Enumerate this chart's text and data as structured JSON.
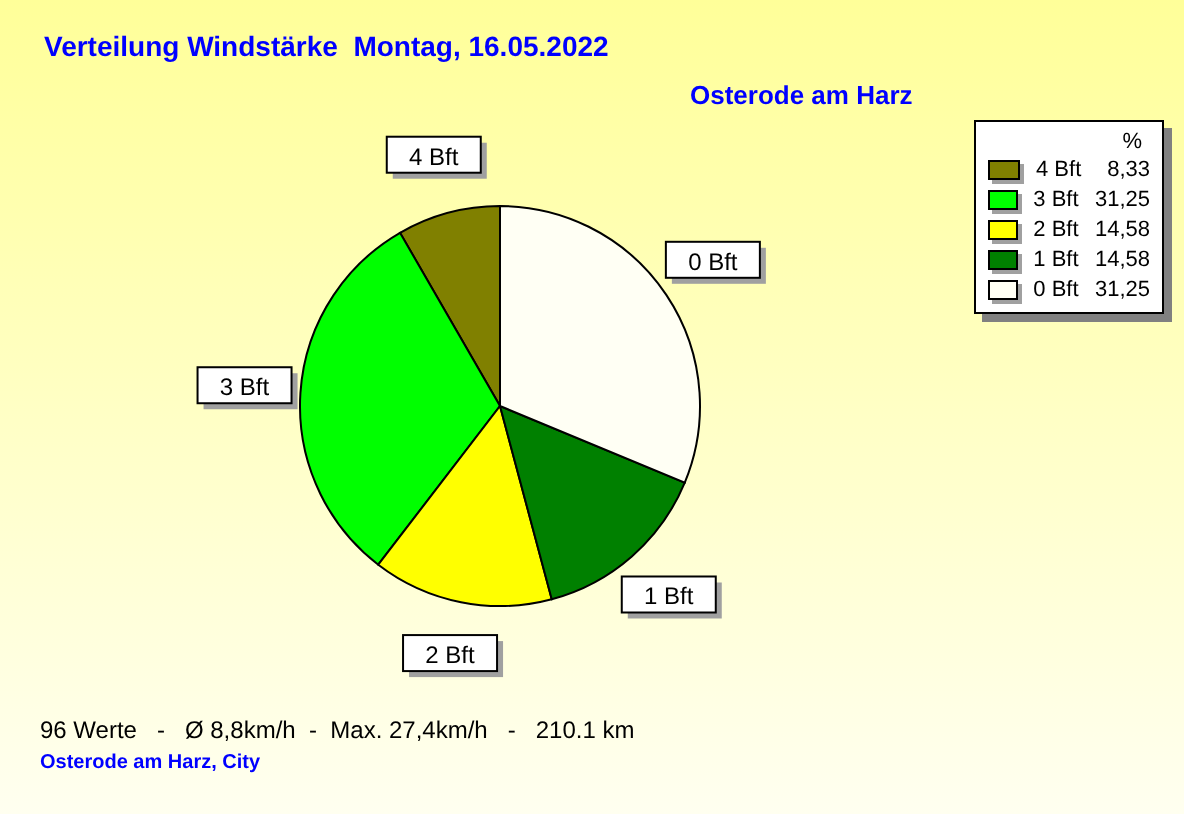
{
  "chart_data": {
    "type": "pie",
    "title": "Verteilung Windstärke  Montag, 16.05.2022",
    "subtitle": "Osterode am Harz",
    "legend_title": "%",
    "legend": "top right",
    "categories": [
      "4 Bft",
      "3 Bft",
      "2 Bft",
      "1 Bft",
      "0 Bft"
    ],
    "values": [
      8.33,
      31.25,
      14.58,
      14.58,
      31.25
    ],
    "value_labels": [
      "8,33",
      "31,25",
      "14,58",
      "14,58",
      "31,25"
    ],
    "colors": [
      "#808000",
      "#00ff00",
      "#ffff00",
      "#008000",
      "#fffff4"
    ],
    "annotations": [
      "96 Werte   -   Ø 8,8km/h  -  Max. 27,4km/h   -   210.1 km",
      "Osterode am Harz, City"
    ]
  }
}
